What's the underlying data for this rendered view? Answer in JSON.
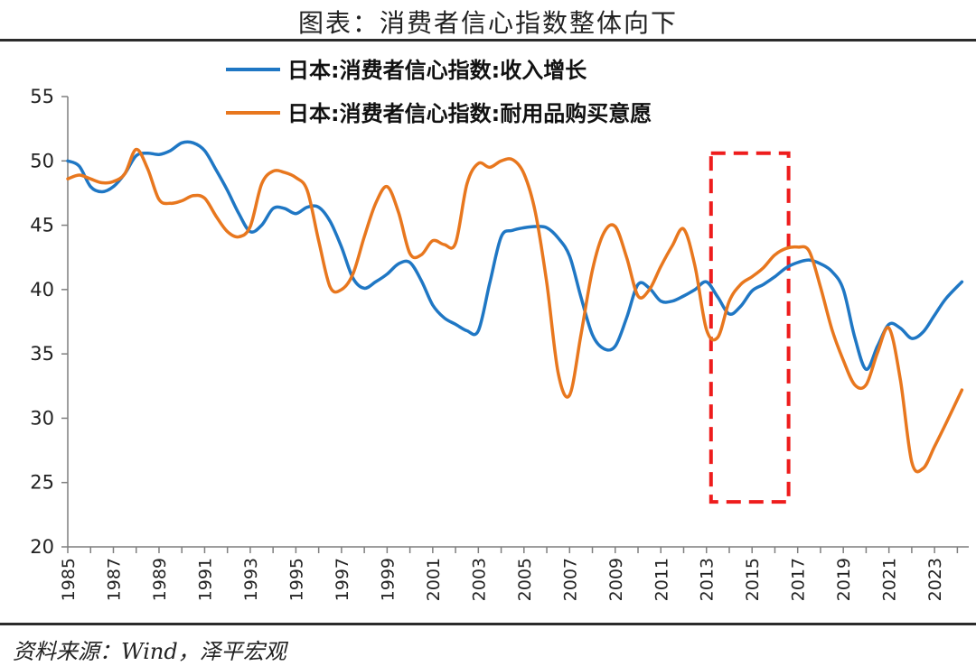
{
  "header": {
    "title": "图表：消费者信心指数整体向下"
  },
  "footer": {
    "source": "资料来源：Wind，泽平宏观"
  },
  "chart_data": {
    "type": "line",
    "title": "图表：消费者信心指数整体向下",
    "xlabel": "",
    "ylabel": "",
    "ylim": [
      20,
      55
    ],
    "yticks": [
      20,
      25,
      30,
      35,
      40,
      45,
      50,
      55
    ],
    "xlim": [
      1985,
      2024.5
    ],
    "xticks": [
      "1985",
      "1987",
      "1989",
      "1991",
      "1993",
      "1995",
      "1997",
      "1999",
      "2001",
      "2003",
      "2005",
      "2007",
      "2009",
      "2011",
      "2013",
      "2015",
      "2017",
      "2019",
      "2021",
      "2023"
    ],
    "grid": false,
    "legend_position": "top",
    "series": [
      {
        "name": "日本:消费者信心指数:收入增长",
        "color": "#1f77c4",
        "points": [
          [
            1985.0,
            50.0
          ],
          [
            1985.5,
            49.6
          ],
          [
            1986.0,
            48.0
          ],
          [
            1986.5,
            47.6
          ],
          [
            1987.0,
            48.0
          ],
          [
            1987.5,
            49.0
          ],
          [
            1988.0,
            50.4
          ],
          [
            1988.5,
            50.6
          ],
          [
            1989.0,
            50.5
          ],
          [
            1989.5,
            50.8
          ],
          [
            1990.0,
            51.4
          ],
          [
            1990.5,
            51.4
          ],
          [
            1991.0,
            50.8
          ],
          [
            1991.5,
            49.3
          ],
          [
            1992.0,
            47.7
          ],
          [
            1992.5,
            45.9
          ],
          [
            1993.0,
            44.5
          ],
          [
            1993.5,
            45.0
          ],
          [
            1994.0,
            46.3
          ],
          [
            1994.5,
            46.3
          ],
          [
            1995.0,
            45.9
          ],
          [
            1995.5,
            46.4
          ],
          [
            1996.0,
            46.4
          ],
          [
            1996.5,
            45.3
          ],
          [
            1997.0,
            43.3
          ],
          [
            1997.5,
            40.9
          ],
          [
            1998.0,
            40.1
          ],
          [
            1998.5,
            40.6
          ],
          [
            1999.0,
            41.2
          ],
          [
            1999.5,
            42.0
          ],
          [
            2000.0,
            42.1
          ],
          [
            2000.5,
            40.7
          ],
          [
            2001.0,
            38.8
          ],
          [
            2001.5,
            37.8
          ],
          [
            2002.0,
            37.3
          ],
          [
            2002.5,
            36.8
          ],
          [
            2003.0,
            36.8
          ],
          [
            2003.5,
            40.5
          ],
          [
            2004.0,
            44.1
          ],
          [
            2004.5,
            44.6
          ],
          [
            2005.0,
            44.8
          ],
          [
            2005.5,
            44.9
          ],
          [
            2006.0,
            44.8
          ],
          [
            2006.5,
            44.0
          ],
          [
            2007.0,
            42.6
          ],
          [
            2007.5,
            39.4
          ],
          [
            2008.0,
            36.5
          ],
          [
            2008.5,
            35.4
          ],
          [
            2009.0,
            35.6
          ],
          [
            2009.5,
            37.8
          ],
          [
            2010.0,
            40.4
          ],
          [
            2010.5,
            40.1
          ],
          [
            2011.0,
            39.1
          ],
          [
            2011.5,
            39.1
          ],
          [
            2012.0,
            39.5
          ],
          [
            2012.5,
            40.0
          ],
          [
            2013.0,
            40.6
          ],
          [
            2013.5,
            39.4
          ],
          [
            2014.0,
            38.1
          ],
          [
            2014.5,
            38.7
          ],
          [
            2015.0,
            39.9
          ],
          [
            2015.5,
            40.4
          ],
          [
            2016.0,
            41.0
          ],
          [
            2016.5,
            41.7
          ],
          [
            2017.0,
            42.1
          ],
          [
            2017.5,
            42.3
          ],
          [
            2018.0,
            42.0
          ],
          [
            2018.5,
            41.4
          ],
          [
            2019.0,
            40.0
          ],
          [
            2019.5,
            36.3
          ],
          [
            2020.0,
            33.8
          ],
          [
            2020.5,
            35.6
          ],
          [
            2021.0,
            37.3
          ],
          [
            2021.5,
            37.0
          ],
          [
            2022.0,
            36.2
          ],
          [
            2022.5,
            36.7
          ],
          [
            2023.0,
            38.0
          ],
          [
            2023.5,
            39.3
          ],
          [
            2024.2,
            40.6
          ]
        ]
      },
      {
        "name": "日本:消费者信心指数:耐用品购买意愿",
        "color": "#e8771e",
        "points": [
          [
            1985.0,
            48.6
          ],
          [
            1985.5,
            48.9
          ],
          [
            1986.0,
            48.6
          ],
          [
            1986.5,
            48.3
          ],
          [
            1987.0,
            48.4
          ],
          [
            1987.5,
            49.0
          ],
          [
            1988.0,
            50.9
          ],
          [
            1988.5,
            49.4
          ],
          [
            1989.0,
            47.0
          ],
          [
            1989.5,
            46.7
          ],
          [
            1990.0,
            46.9
          ],
          [
            1990.5,
            47.3
          ],
          [
            1991.0,
            47.1
          ],
          [
            1991.5,
            45.7
          ],
          [
            1992.0,
            44.5
          ],
          [
            1992.5,
            44.1
          ],
          [
            1993.0,
            44.9
          ],
          [
            1993.5,
            48.2
          ],
          [
            1994.0,
            49.2
          ],
          [
            1994.5,
            49.1
          ],
          [
            1995.0,
            48.7
          ],
          [
            1995.5,
            47.7
          ],
          [
            1996.0,
            43.8
          ],
          [
            1996.5,
            40.2
          ],
          [
            1997.0,
            40.0
          ],
          [
            1997.5,
            41.2
          ],
          [
            1998.0,
            44.1
          ],
          [
            1998.5,
            46.7
          ],
          [
            1999.0,
            48.0
          ],
          [
            1999.5,
            46.0
          ],
          [
            2000.0,
            42.8
          ],
          [
            2000.5,
            42.7
          ],
          [
            2001.0,
            43.8
          ],
          [
            2001.5,
            43.5
          ],
          [
            2002.0,
            43.6
          ],
          [
            2002.5,
            48.2
          ],
          [
            2003.0,
            49.8
          ],
          [
            2003.5,
            49.5
          ],
          [
            2004.0,
            50.0
          ],
          [
            2004.5,
            50.1
          ],
          [
            2005.0,
            49.0
          ],
          [
            2005.5,
            46.0
          ],
          [
            2006.0,
            40.5
          ],
          [
            2006.5,
            33.5
          ],
          [
            2007.0,
            31.8
          ],
          [
            2007.5,
            36.5
          ],
          [
            2008.0,
            41.5
          ],
          [
            2008.5,
            44.4
          ],
          [
            2009.0,
            44.9
          ],
          [
            2009.5,
            42.5
          ],
          [
            2010.0,
            39.5
          ],
          [
            2010.5,
            40.0
          ],
          [
            2011.0,
            41.8
          ],
          [
            2011.5,
            43.4
          ],
          [
            2012.0,
            44.7
          ],
          [
            2012.5,
            41.8
          ],
          [
            2013.0,
            36.9
          ],
          [
            2013.5,
            36.3
          ],
          [
            2014.0,
            39.1
          ],
          [
            2014.5,
            40.4
          ],
          [
            2015.0,
            41.0
          ],
          [
            2015.5,
            41.7
          ],
          [
            2016.0,
            42.7
          ],
          [
            2016.5,
            43.2
          ],
          [
            2017.0,
            43.3
          ],
          [
            2017.5,
            43.0
          ],
          [
            2018.0,
            40.2
          ],
          [
            2018.5,
            36.9
          ],
          [
            2019.0,
            34.5
          ],
          [
            2019.5,
            32.6
          ],
          [
            2020.0,
            32.6
          ],
          [
            2020.5,
            35.1
          ],
          [
            2021.0,
            37.0
          ],
          [
            2021.5,
            33.0
          ],
          [
            2022.0,
            26.6
          ],
          [
            2022.5,
            26.1
          ],
          [
            2023.0,
            27.8
          ],
          [
            2023.5,
            29.6
          ],
          [
            2024.2,
            32.2
          ]
        ]
      }
    ],
    "annotations": [
      {
        "type": "dashed-rect",
        "color": "#ee1c1c",
        "x_range": [
          2013.2,
          2016.6
        ],
        "y_range": [
          23.5,
          50.6
        ]
      }
    ]
  }
}
